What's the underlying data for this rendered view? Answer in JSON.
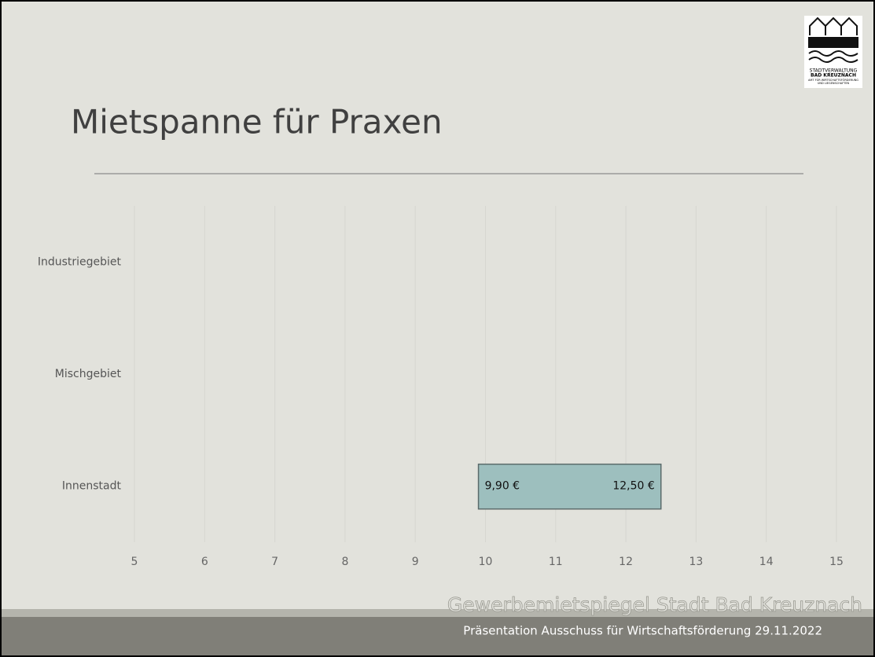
{
  "chart_data": {
    "type": "range-bar",
    "title": "Mietspanne für Praxen",
    "categories": [
      "Industriegebiet",
      "Mischgebiet",
      "Innenstadt"
    ],
    "low": {
      "values": [
        null,
        null,
        9.9
      ],
      "value_labels": [
        null,
        null,
        "9,90 €"
      ]
    },
    "high": {
      "values": [
        null,
        null,
        12.5
      ],
      "value_labels": [
        null,
        null,
        "12,50 €"
      ]
    },
    "color": "#9dbfbe",
    "xlim": [
      5,
      15
    ],
    "xticks": [
      5,
      6,
      7,
      8,
      9,
      10,
      11,
      12,
      13,
      14,
      15
    ],
    "grid": true
  },
  "footer": {
    "title": "Gewerbemietspiegel Stadt Bad Kreuznach",
    "subtitle": "Präsentation Ausschuss für Wirtschaftsförderung 29.11.2022"
  },
  "logo": {
    "line1": "STADTVERWALTUNG",
    "line2": "BAD KREUZNACH",
    "line3": "AMT FÜR WIRTSCHAFTSFÖRDERUNG",
    "line4": "UND LIEGENSCHAFTEN"
  }
}
